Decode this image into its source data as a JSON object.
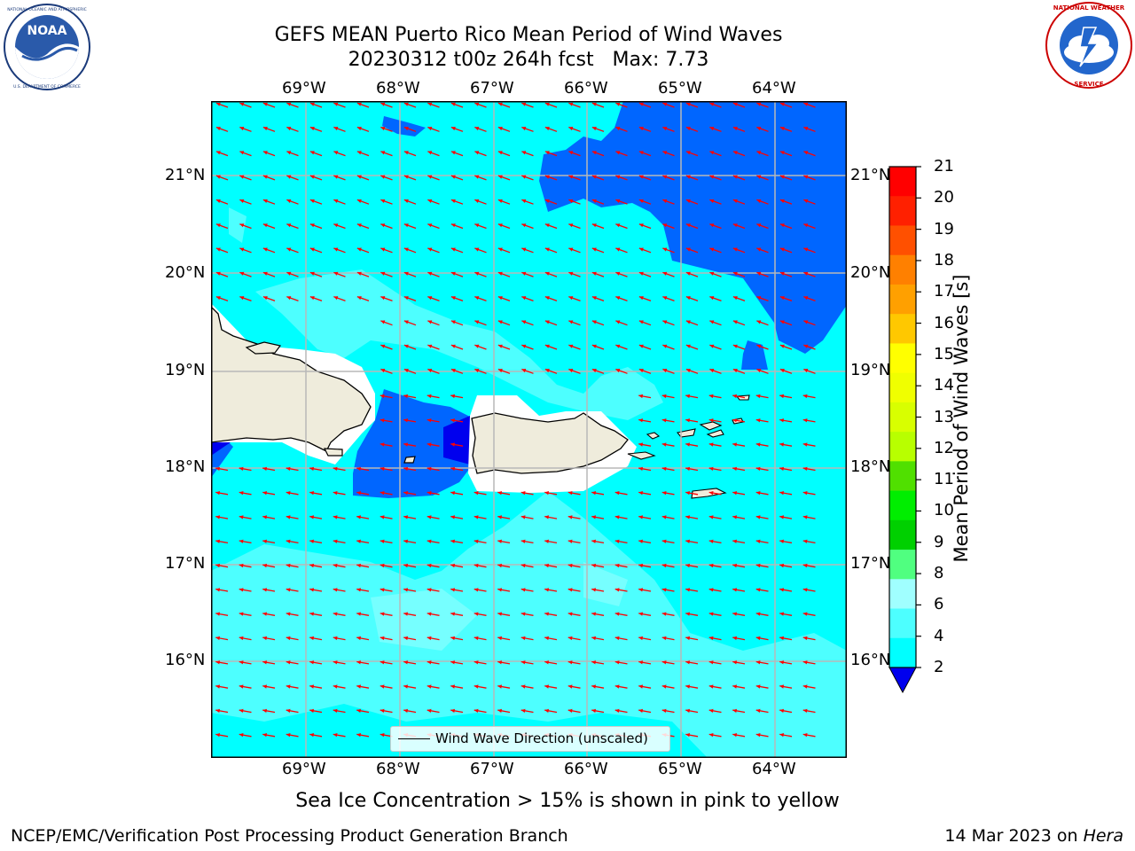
{
  "header": {
    "title_line1": "GEFS MEAN Puerto Rico Mean Period of Wind Waves",
    "title_line2": "20230312 t00z 264h fcst   Max: 7.73"
  },
  "logos": {
    "noaa_text": "NOAA",
    "noaa_ring": "NATIONAL OCEANIC AND ATMOSPHERIC ADMINISTRATION · U.S. DEPARTMENT OF COMMERCE",
    "nws_ring": "NATIONAL WEATHER SERVICE"
  },
  "map": {
    "lon_ticks": [
      "69°W",
      "68°W",
      "67°W",
      "66°W",
      "65°W",
      "64°W"
    ],
    "lat_ticks": [
      "21°N",
      "20°N",
      "19°N",
      "18°N",
      "17°N",
      "16°N"
    ],
    "legend_label": "Wind Wave Direction (unscaled)",
    "wind_wave_direction": "from east-northeast toward west-southwest",
    "colors": {
      "ocean_primary": "#00ffff",
      "ocean_light": "#4dffff",
      "ocean_lighter": "#99ffff",
      "deep_blue": "#0066ff",
      "darkest_blue": "#0000ee",
      "land": "#efecdc",
      "arrow": "#ff0000"
    }
  },
  "colorbar": {
    "label": "Mean Period of Wind Waves [s]",
    "ticks": [
      "21",
      "20",
      "19",
      "18",
      "17",
      "16",
      "15",
      "14",
      "13",
      "12",
      "11",
      "10",
      "9",
      "8",
      "6",
      "4",
      "2"
    ],
    "colors": [
      "#ff0000",
      "#ff2000",
      "#ff5000",
      "#ff8000",
      "#ffa000",
      "#ffc800",
      "#ffff00",
      "#f0ff00",
      "#d8ff00",
      "#b8ff00",
      "#50e000",
      "#00ee00",
      "#00d000",
      "#50ff80",
      "#a0ffff",
      "#4dffff",
      "#00ffff",
      "#0080ff"
    ]
  },
  "notes": {
    "sea_ice": "Sea Ice Concentration > 15% is shown in pink to yellow",
    "footer_left": "NCEP/EMC/Verification Post Processing Product Generation Branch",
    "footer_right_prefix": "14 Mar 2023 on ",
    "footer_right_host": "Hera"
  }
}
